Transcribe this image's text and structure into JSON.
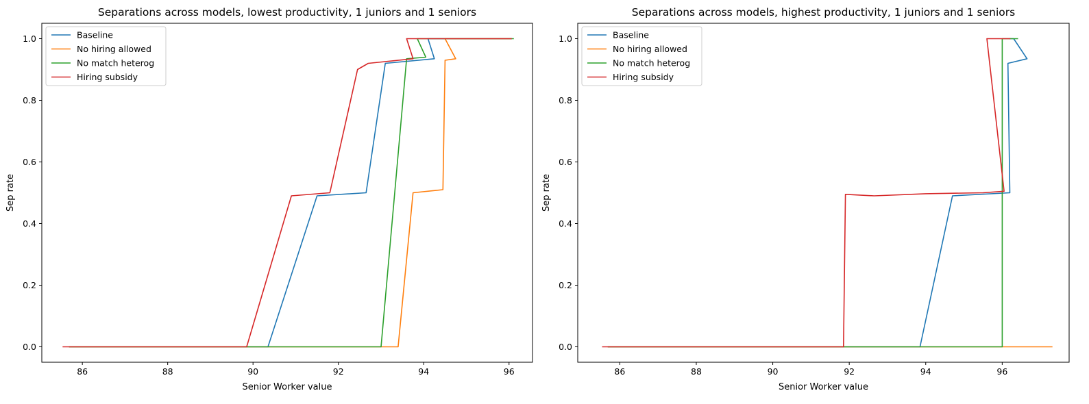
{
  "chart_data": [
    {
      "type": "line",
      "title": "Separations across models, lowest productivity, 1 juniors and 1 seniors",
      "xlabel": "Senior Worker value",
      "ylabel": "Sep rate",
      "xlim": [
        85.05,
        96.55
      ],
      "ylim": [
        -0.05,
        1.05
      ],
      "xticks": [
        86,
        88,
        90,
        92,
        94,
        96
      ],
      "yticks": [
        0.0,
        0.2,
        0.4,
        0.6,
        0.8,
        1.0
      ],
      "grid": false,
      "legend_position": "upper-left",
      "series": [
        {
          "name": "Baseline",
          "color": "#1f77b4",
          "x": [
            85.7,
            90.35,
            91.5,
            92.65,
            93.1,
            94.25,
            94.1,
            96.05
          ],
          "y": [
            0.0,
            0.0,
            0.49,
            0.5,
            0.92,
            0.935,
            1.0,
            1.0
          ]
        },
        {
          "name": "No hiring allowed",
          "color": "#ff7f0e",
          "x": [
            85.7,
            93.4,
            93.75,
            94.45,
            94.5,
            94.75,
            94.5,
            96.05
          ],
          "y": [
            0.0,
            0.0,
            0.5,
            0.51,
            0.93,
            0.935,
            1.0,
            1.0
          ]
        },
        {
          "name": "No match heterog",
          "color": "#2ca02c",
          "x": [
            85.7,
            93.0,
            93.6,
            94.05,
            93.85,
            96.1
          ],
          "y": [
            0.0,
            0.0,
            0.935,
            0.94,
            1.0,
            1.0
          ]
        },
        {
          "name": "Hiring subsidy",
          "color": "#d62728",
          "x": [
            85.55,
            89.85,
            90.9,
            91.8,
            92.45,
            92.7,
            93.75,
            93.6,
            96.05
          ],
          "y": [
            0.0,
            0.0,
            0.49,
            0.5,
            0.9,
            0.92,
            0.935,
            1.0,
            1.0
          ]
        }
      ]
    },
    {
      "type": "line",
      "title": "Separations across models, highest productivity, 1 juniors and 1 seniors",
      "xlabel": "Senior Worker value",
      "ylabel": "Sep rate",
      "xlim": [
        84.9,
        97.75
      ],
      "ylim": [
        -0.05,
        1.05
      ],
      "xticks": [
        86,
        88,
        90,
        92,
        94,
        96
      ],
      "yticks": [
        0.0,
        0.2,
        0.4,
        0.6,
        0.8,
        1.0
      ],
      "grid": false,
      "legend_position": "upper-left",
      "series": [
        {
          "name": "Baseline",
          "color": "#1f77b4",
          "x": [
            85.7,
            93.85,
            94.7,
            96.2,
            96.15,
            96.65,
            96.3,
            96.2
          ],
          "y": [
            0.0,
            0.0,
            0.49,
            0.5,
            0.92,
            0.935,
            1.0,
            1.0
          ]
        },
        {
          "name": "No hiring allowed",
          "color": "#ff7f0e",
          "x": [
            85.7,
            97.3
          ],
          "y": [
            0.0,
            0.0
          ]
        },
        {
          "name": "No match heterog",
          "color": "#2ca02c",
          "x": [
            85.7,
            96.0,
            96.0,
            96.4
          ],
          "y": [
            0.0,
            0.0,
            1.0,
            1.0
          ]
        },
        {
          "name": "Hiring subsidy",
          "color": "#d62728",
          "x": [
            85.55,
            91.85,
            91.9,
            92.65,
            94.0,
            95.5,
            96.05,
            95.6,
            96.2
          ],
          "y": [
            0.0,
            0.0,
            0.495,
            0.49,
            0.497,
            0.5,
            0.505,
            1.0,
            1.0
          ]
        }
      ]
    }
  ]
}
